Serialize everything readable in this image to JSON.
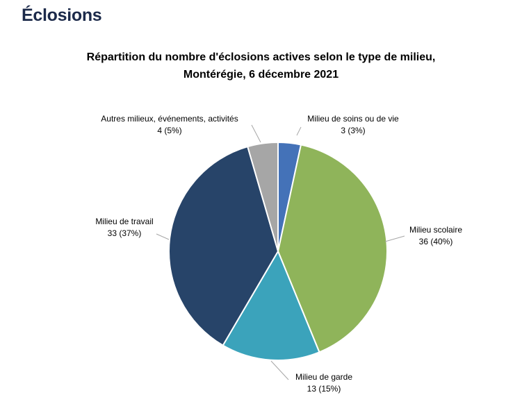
{
  "header": {
    "title": "Éclosions"
  },
  "chart_data": {
    "type": "pie",
    "title_line1": "Répartition du nombre d'éclosions actives selon le type de milieu,",
    "title_line2": "Montérégie, 6 décembre 2021",
    "slices": [
      {
        "name": "Milieu de soins ou de vie",
        "value": 3,
        "label": "3 (3%)",
        "color": "#4472b8"
      },
      {
        "name": "Milieu scolaire",
        "value": 36,
        "label": "36 (40%)",
        "color": "#8fb45a"
      },
      {
        "name": "Milieu de garde",
        "value": 13,
        "label": "13 (15%)",
        "color": "#3ba3bb"
      },
      {
        "name": "Milieu de travail",
        "value": 33,
        "label": "33 (37%)",
        "color": "#274469"
      },
      {
        "name": "Autres milieux, événements, activités",
        "value": 4,
        "label": "4 (5%)",
        "color": "#a6a6a6"
      }
    ]
  }
}
